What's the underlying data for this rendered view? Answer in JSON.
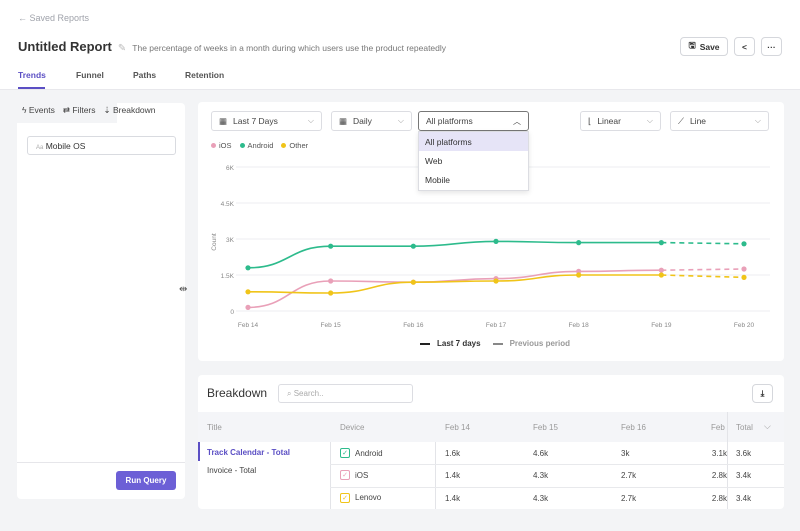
{
  "header": {
    "back_label": "Saved Reports",
    "title": "Untitled Report",
    "description": "The percentage of weeks in a month during which users use the product repeatedly",
    "save_label": "Save"
  },
  "tabs": [
    {
      "label": "Trends",
      "active": true
    },
    {
      "label": "Funnel"
    },
    {
      "label": "Paths"
    },
    {
      "label": "Retention"
    }
  ],
  "left_panel": {
    "tabs": [
      "Events",
      "Filters",
      "Breakdown"
    ],
    "active_tab": "Breakdown",
    "field_prefix": "Aa",
    "field_value": "Mobile OS",
    "run_label": "Run Query"
  },
  "controls": {
    "range": "Last 7 Days",
    "interval": "Daily",
    "platform": "All platforms",
    "platform_options": [
      "All platforms",
      "Web",
      "Mobile"
    ],
    "scale": "Linear",
    "chart_type": "Line"
  },
  "chart_data": {
    "type": "line",
    "ylabel": "Count",
    "ylim": [
      0,
      6000
    ],
    "yticks": [
      "0",
      "1.5K",
      "3K",
      "4.5K",
      "6K"
    ],
    "categories": [
      "Feb 14",
      "Feb 15",
      "Feb 16",
      "Feb 17",
      "Feb 18",
      "Feb 19",
      "Feb 20"
    ],
    "series": [
      {
        "name": "iOS",
        "color": "#e9a0b8",
        "values": [
          150,
          1250,
          1200,
          1350,
          1650,
          1700,
          1750
        ]
      },
      {
        "name": "Android",
        "color": "#2dbb8c",
        "values": [
          1800,
          2700,
          2700,
          2900,
          2850,
          2850,
          2800
        ]
      },
      {
        "name": "Other",
        "color": "#f0c419",
        "values": [
          800,
          750,
          1200,
          1250,
          1500,
          1500,
          1400
        ]
      }
    ],
    "legend_bottom": [
      "Last 7 days",
      "Previous period"
    ],
    "grid": true
  },
  "breakdown": {
    "title": "Breakdown",
    "search_placeholder": "Search..",
    "columns": [
      "Title",
      "Device",
      "Feb 14",
      "Feb 15",
      "Feb 16",
      "Feb",
      "Total"
    ],
    "titles": [
      "Track Calendar - Total",
      "Invoice - Total"
    ],
    "rows": [
      {
        "device": "Android",
        "color": "#2dbb8c",
        "values": [
          "1.6k",
          "4.6k",
          "3k",
          "3.1k",
          "3.6k"
        ]
      },
      {
        "device": "iOS",
        "color": "#e9a0b8",
        "values": [
          "1.4k",
          "4.3k",
          "2.7k",
          "2.8k",
          "3.4k"
        ]
      },
      {
        "device": "Lenovo",
        "color": "#f0c419",
        "values": [
          "1.4k",
          "4.3k",
          "2.7k",
          "2.8k",
          "3.4k"
        ]
      }
    ]
  }
}
